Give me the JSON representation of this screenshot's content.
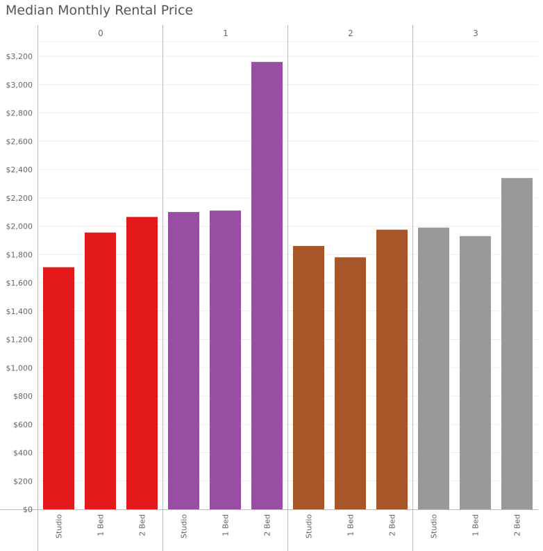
{
  "title": "Median Monthly Rental Price",
  "colors": {
    "panel_0": "#e3191c",
    "panel_1": "#984ea3",
    "panel_2": "#a65628",
    "panel_3": "#999999",
    "grid": "#eeeeee",
    "axis": "#bbbbbb",
    "text": "#666666"
  },
  "chart_data": {
    "type": "bar",
    "title": "Median Monthly Rental Price",
    "xlabel": "",
    "ylabel": "",
    "ylim": [
      0,
      3300
    ],
    "yticks": [
      0,
      200,
      400,
      600,
      800,
      1000,
      1200,
      1400,
      1600,
      1800,
      2000,
      2200,
      2400,
      2600,
      2800,
      3000,
      3200
    ],
    "ytick_labels": [
      "$0",
      "$200",
      "$400",
      "$600",
      "$800",
      "$1,000",
      "$1,200",
      "$1,400",
      "$1,600",
      "$1,800",
      "$2,000",
      "$2,200",
      "$2,400",
      "$2,600",
      "$2,800",
      "$3,000",
      "$3,200"
    ],
    "grid": true,
    "panels": [
      {
        "label": "0",
        "categories": [
          "Studio",
          "1 Bed",
          "2 Bed"
        ],
        "values": [
          1710,
          1955,
          2065
        ]
      },
      {
        "label": "1",
        "categories": [
          "Studio",
          "1 Bed",
          "2 Bed"
        ],
        "values": [
          2100,
          2110,
          3160
        ]
      },
      {
        "label": "2",
        "categories": [
          "Studio",
          "1 Bed",
          "2 Bed"
        ],
        "values": [
          1860,
          1780,
          1975
        ]
      },
      {
        "label": "3",
        "categories": [
          "Studio",
          "1 Bed",
          "2 Bed"
        ],
        "values": [
          1990,
          1930,
          2340
        ]
      }
    ]
  }
}
